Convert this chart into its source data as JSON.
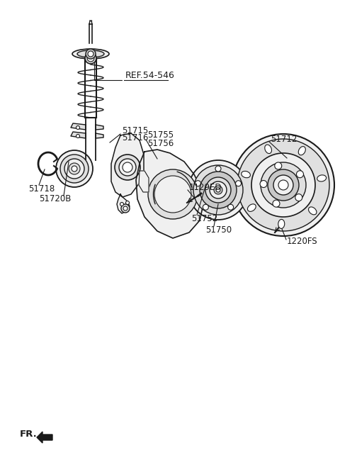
{
  "bg_color": "#ffffff",
  "lc": "#1a1a1a",
  "fc_light": "#f0f0f0",
  "fc_mid": "#e0e0e0",
  "fc_dark": "#c8c8c8",
  "labels": {
    "REF54546": "REF.54-546",
    "51715": "51715",
    "51716": "51716",
    "51718": "51718",
    "51720B": "51720B",
    "51755": "51755",
    "51756": "51756",
    "1129ED": "1129ED",
    "51752": "51752",
    "51750": "51750",
    "51712": "51712",
    "1220FS": "1220FS",
    "FR": "FR."
  },
  "font_size": 8.5,
  "fr_font_size": 9.5
}
